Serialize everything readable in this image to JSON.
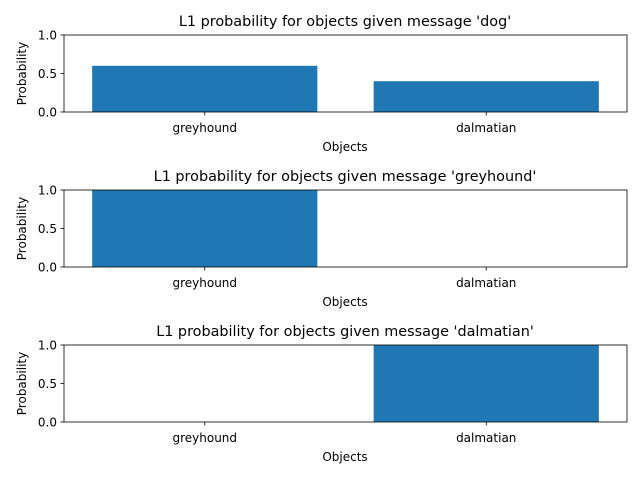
{
  "colors": {
    "bar": "#1f77b4"
  },
  "chart_data": [
    {
      "type": "bar",
      "title": "L1 probability for objects given message 'dog'",
      "xlabel": "Objects",
      "ylabel": "Probability",
      "categories": [
        "greyhound",
        "dalmatian"
      ],
      "values": [
        0.6,
        0.4
      ],
      "ylim": [
        0,
        1.0
      ],
      "yticks": [
        "0.0",
        "0.5",
        "1.0"
      ],
      "grid": false
    },
    {
      "type": "bar",
      "title": "L1 probability for objects given message 'greyhound'",
      "xlabel": "Objects",
      "ylabel": "Probability",
      "categories": [
        "greyhound",
        "dalmatian"
      ],
      "values": [
        1.0,
        0.0
      ],
      "ylim": [
        0,
        1.0
      ],
      "yticks": [
        "0.0",
        "0.5",
        "1.0"
      ],
      "grid": false
    },
    {
      "type": "bar",
      "title": "L1 probability for objects given message 'dalmatian'",
      "xlabel": "Objects",
      "ylabel": "Probability",
      "categories": [
        "greyhound",
        "dalmatian"
      ],
      "values": [
        0.0,
        1.0
      ],
      "ylim": [
        0,
        1.0
      ],
      "yticks": [
        "0.0",
        "0.5",
        "1.0"
      ],
      "grid": false
    }
  ]
}
